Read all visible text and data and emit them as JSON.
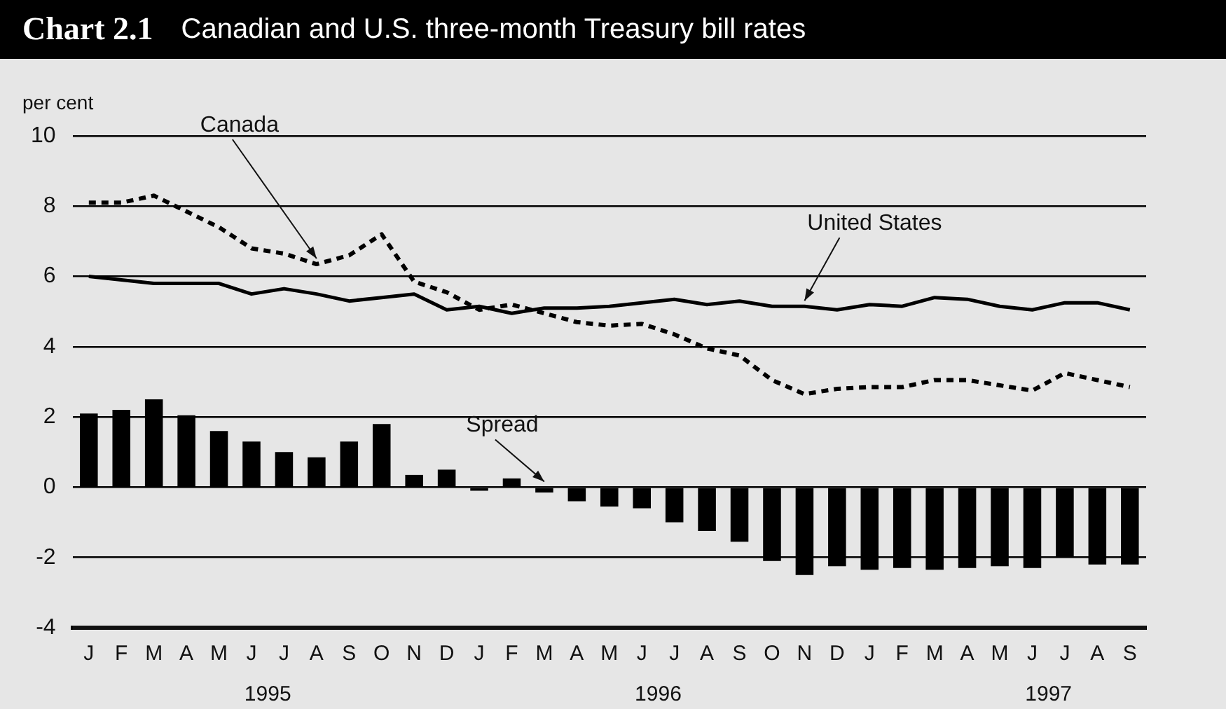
{
  "chart_data": {
    "type": "bar",
    "title": "Chart 2.1",
    "subtitle": "Canadian and U.S. three-month Treasury bill rates",
    "ylabel": "per cent",
    "categories": [
      "J",
      "F",
      "M",
      "A",
      "M",
      "J",
      "J",
      "A",
      "S",
      "O",
      "N",
      "D",
      "J",
      "F",
      "M",
      "A",
      "M",
      "J",
      "J",
      "A",
      "S",
      "O",
      "N",
      "D",
      "J",
      "F",
      "M",
      "A",
      "M",
      "J",
      "J",
      "A",
      "S"
    ],
    "series": [
      {
        "name": "Spread",
        "color": "#000000",
        "values": [
          2.1,
          2.2,
          2.5,
          2.05,
          1.6,
          1.3,
          1.0,
          0.85,
          1.3,
          1.8,
          0.35,
          0.5,
          -0.1,
          0.25,
          -0.15,
          -0.4,
          -0.55,
          -0.6,
          -1.0,
          -1.25,
          -1.55,
          -2.1,
          -2.5,
          -2.25,
          -2.35,
          -2.3,
          -2.35,
          -2.3,
          -2.25,
          -2.3,
          -2.0,
          -2.2,
          -2.2
        ]
      },
      {
        "name": "Canada",
        "type": "line",
        "line_style": "dashed",
        "color": "#000000",
        "values": [
          8.1,
          8.1,
          8.3,
          7.85,
          7.4,
          6.8,
          6.65,
          6.35,
          6.6,
          7.2,
          5.85,
          5.55,
          5.05,
          5.2,
          4.95,
          4.7,
          4.6,
          4.65,
          4.35,
          3.95,
          3.75,
          3.05,
          2.65,
          2.8,
          2.85,
          2.85,
          3.05,
          3.05,
          2.9,
          2.75,
          3.25,
          3.05,
          2.85
        ]
      },
      {
        "name": "United States",
        "type": "line",
        "line_style": "solid",
        "color": "#000000",
        "values": [
          6.0,
          5.9,
          5.8,
          5.8,
          5.8,
          5.5,
          5.65,
          5.5,
          5.3,
          5.4,
          5.5,
          5.05,
          5.15,
          4.95,
          5.1,
          5.1,
          5.15,
          5.25,
          5.35,
          5.2,
          5.3,
          5.15,
          5.15,
          5.05,
          5.2,
          5.15,
          5.4,
          5.35,
          5.15,
          5.05,
          5.25,
          5.25,
          5.05
        ]
      }
    ],
    "ylim": [
      -4,
      10
    ],
    "yticks": [
      -4,
      -2,
      0,
      2,
      4,
      6,
      8,
      10
    ],
    "grid": "y",
    "legend": false,
    "marker": "none",
    "annotations": [
      "1995",
      "1996",
      "1997"
    ]
  }
}
